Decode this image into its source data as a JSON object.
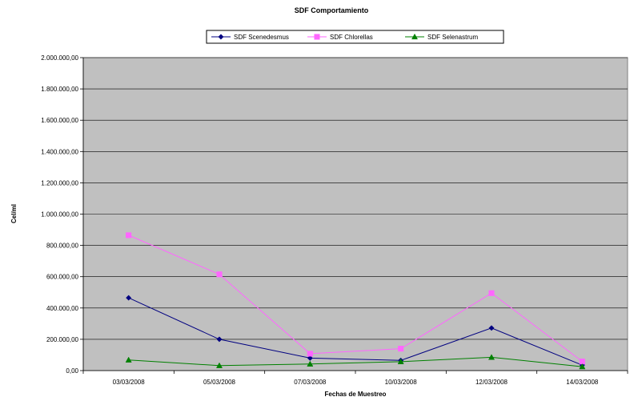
{
  "chart_data": {
    "type": "line",
    "title": "SDF Comportamiento",
    "xlabel": "Fechas de Muestreo",
    "ylabel": "Cel/ml",
    "categories": [
      "03/03/2008",
      "05/03/2008",
      "07/03/2008",
      "10/03/2008",
      "12/03/2008",
      "14/03/2008"
    ],
    "ylim": [
      0,
      2000000
    ],
    "yticks": [
      0,
      200000,
      400000,
      600000,
      800000,
      1000000,
      1200000,
      1400000,
      1600000,
      1800000,
      2000000
    ],
    "ytick_labels": [
      "0,00",
      "200.000,00",
      "400.000,00",
      "600.000,00",
      "800.000,00",
      "1.000.000,00",
      "1.200.000,00",
      "1.400.000,00",
      "1.600.000,00",
      "1.800.000,00",
      "2.000.000,00"
    ],
    "grid": true,
    "legend_position": "top",
    "plot_background": "#c0c0c0",
    "series": [
      {
        "name": "SDF Scenedesmus",
        "color": "#000080",
        "marker": "diamond",
        "values": [
          465000,
          200000,
          80000,
          65000,
          272000,
          35000
        ]
      },
      {
        "name": "SDF Chlorellas",
        "color": "#ff66ff",
        "marker": "square",
        "values": [
          865000,
          615000,
          108000,
          140000,
          495000,
          58000
        ]
      },
      {
        "name": "SDF Selenastrum",
        "color": "#008000",
        "marker": "triangle",
        "values": [
          68000,
          32000,
          42000,
          57000,
          85000,
          25000
        ]
      }
    ]
  }
}
